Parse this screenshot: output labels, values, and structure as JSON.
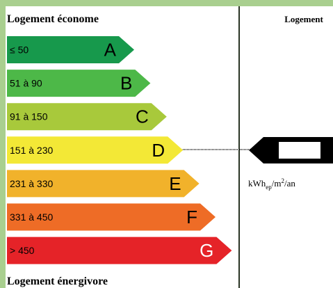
{
  "header": {
    "left_title": "Logement économe",
    "right_title": "Logement",
    "footer": "Logement énergivore"
  },
  "classes": [
    {
      "range": "≤ 50",
      "letter": "A",
      "color": "#17994c"
    },
    {
      "range": "51 à 90",
      "letter": "B",
      "color": "#4db848"
    },
    {
      "range": "91 à 150",
      "letter": "C",
      "color": "#a8c93b"
    },
    {
      "range": "151 à 230",
      "letter": "D",
      "color": "#f3e836"
    },
    {
      "range": "231 à 330",
      "letter": "E",
      "color": "#f1b22b"
    },
    {
      "range": "331 à 450",
      "letter": "F",
      "color": "#ee6c26"
    },
    {
      "range": "> 450",
      "letter": "G",
      "color": "#e52328"
    }
  ],
  "unit": {
    "base": "kWh",
    "sub": "ep",
    "mid": "/m",
    "sup": "2",
    "end": "/an"
  }
}
